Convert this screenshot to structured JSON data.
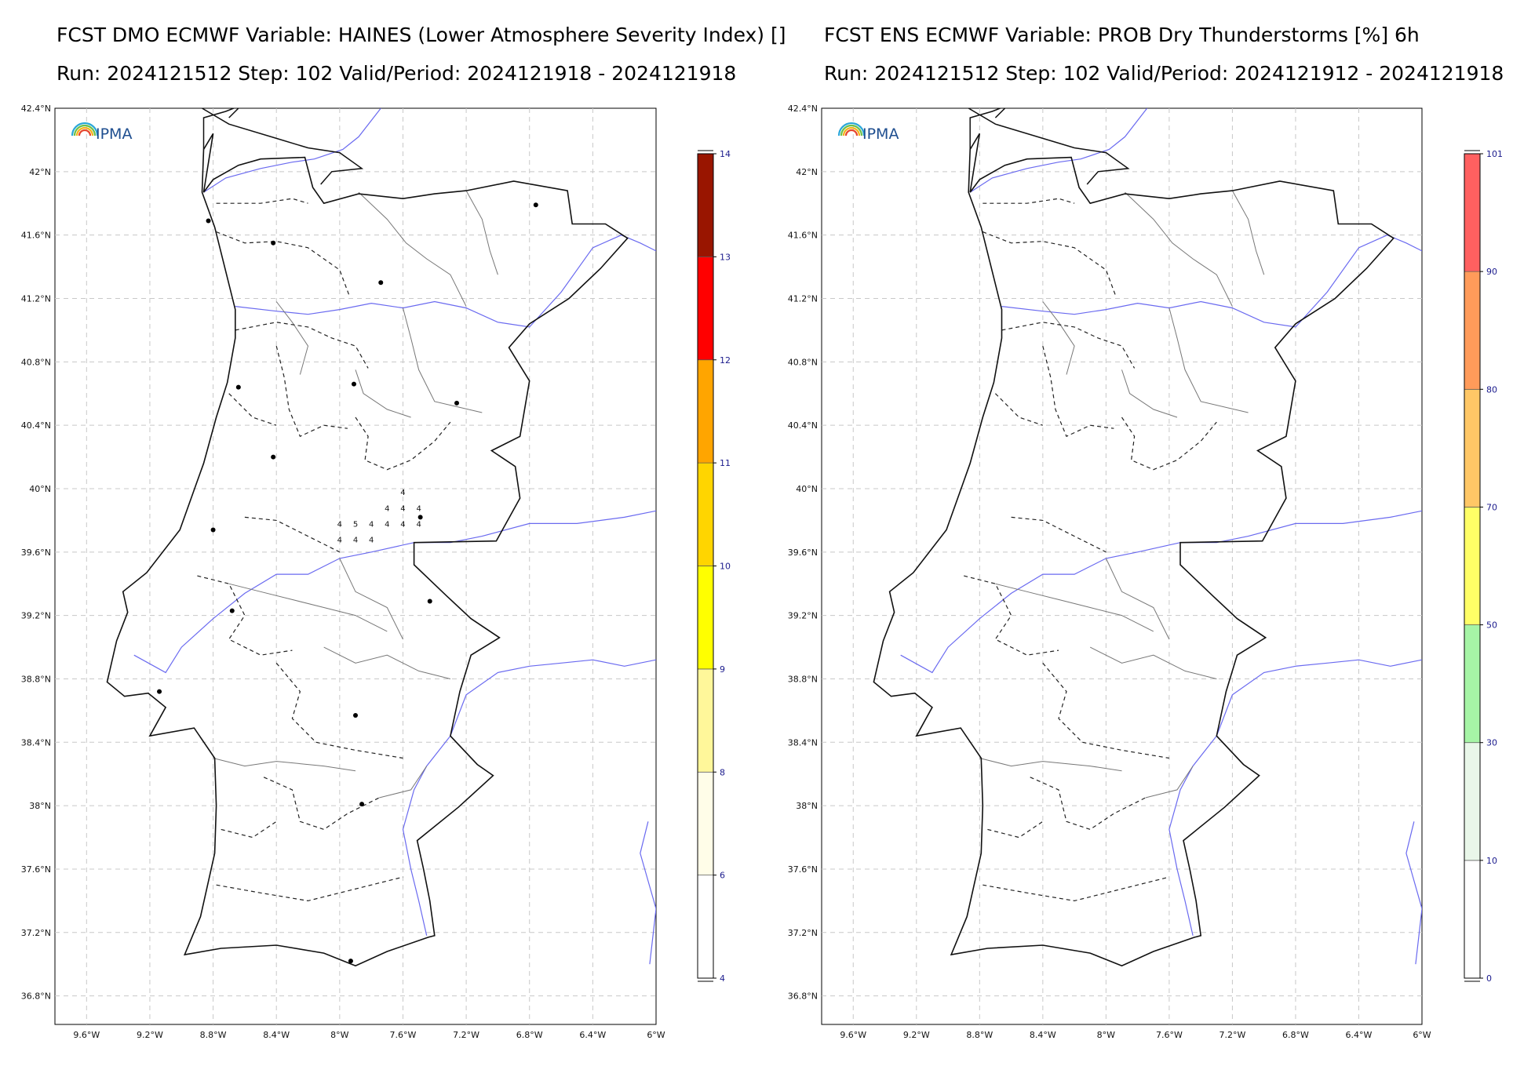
{
  "panels": [
    {
      "title_line1": "FCST DMO ECMWF Variable: HAINES (Lower Atmosphere Severity Index) []",
      "title_line2": "Run: 2024121512 Step: 102 Valid/Period: 2024121918 - 2024121918",
      "logo": "IPMA",
      "lat_labels": [
        "42.4°N",
        "42°N",
        "41.6°N",
        "41.2°N",
        "40.8°N",
        "40.4°N",
        "40°N",
        "39.6°N",
        "39.2°N",
        "38.8°N",
        "38.4°N",
        "38°N",
        "37.6°N",
        "37.2°N",
        "36.8°N"
      ],
      "lon_labels": [
        "9.6°W",
        "9.2°W",
        "8.8°W",
        "8.4°W",
        "8°W",
        "7.6°W",
        "7.2°W",
        "6.8°W",
        "6.4°W",
        "6°W"
      ],
      "colorbar": {
        "ticks": [
          "4",
          "6",
          "8",
          "9",
          "10",
          "11",
          "12",
          "13",
          "14"
        ],
        "colors": [
          "#ffffff",
          "#fffde8",
          "#fff79a",
          "#ffff00",
          "#ffd500",
          "#ffa500",
          "#ff0000",
          "#991500"
        ]
      },
      "grid_values": [
        {
          "lat": 39.96,
          "lon": -7.6,
          "v": "4"
        },
        {
          "lat": 39.86,
          "lon": -7.7,
          "v": "4"
        },
        {
          "lat": 39.86,
          "lon": -7.6,
          "v": "4"
        },
        {
          "lat": 39.86,
          "lon": -7.5,
          "v": "4"
        },
        {
          "lat": 39.76,
          "lon": -8.0,
          "v": "4"
        },
        {
          "lat": 39.76,
          "lon": -7.9,
          "v": "5"
        },
        {
          "lat": 39.76,
          "lon": -7.8,
          "v": "4"
        },
        {
          "lat": 39.76,
          "lon": -7.7,
          "v": "4"
        },
        {
          "lat": 39.76,
          "lon": -7.6,
          "v": "4"
        },
        {
          "lat": 39.76,
          "lon": -7.5,
          "v": "4"
        },
        {
          "lat": 39.66,
          "lon": -8.0,
          "v": "4"
        },
        {
          "lat": 39.66,
          "lon": -7.9,
          "v": "4"
        },
        {
          "lat": 39.66,
          "lon": -7.8,
          "v": "4"
        }
      ]
    },
    {
      "title_line1": "FCST ENS ECMWF Variable: PROB Dry Thunderstorms [%] 6h",
      "title_line2": "Run: 2024121512 Step: 102 Valid/Period: 2024121912 - 2024121918",
      "logo": "IPMA",
      "lat_labels": [
        "42.4°N",
        "42°N",
        "41.6°N",
        "41.2°N",
        "40.8°N",
        "40.4°N",
        "40°N",
        "39.6°N",
        "39.2°N",
        "38.8°N",
        "38.4°N",
        "38°N",
        "37.6°N",
        "37.2°N",
        "36.8°N"
      ],
      "lon_labels": [
        "9.6°W",
        "9.2°W",
        "8.8°W",
        "8.4°W",
        "8°W",
        "7.6°W",
        "7.2°W",
        "6.8°W",
        "6.4°W",
        "6°W"
      ],
      "colorbar": {
        "ticks": [
          "0",
          "10",
          "30",
          "50",
          "70",
          "80",
          "90",
          "101"
        ],
        "colors": [
          "#ffffff",
          "#e9f7e9",
          "#a6f5a6",
          "#ffff66",
          "#ffc766",
          "#ff9b5a",
          "#ff6060"
        ]
      },
      "grid_values": []
    }
  ],
  "map": {
    "lat_min": 36.62,
    "lat_max": 42.4,
    "lon_min": -9.8,
    "lon_max": -6.0,
    "lat_ticks": [
      42.4,
      42.0,
      41.6,
      41.2,
      40.8,
      40.4,
      40.0,
      39.6,
      39.2,
      38.8,
      38.4,
      38.0,
      37.6,
      37.2,
      36.8
    ],
    "lon_ticks": [
      -9.6,
      -9.2,
      -8.8,
      -8.4,
      -8.0,
      -7.6,
      -7.2,
      -6.8,
      -6.4,
      -6.0
    ],
    "cities": [
      [
        41.79,
        -6.76
      ],
      [
        41.69,
        -8.83
      ],
      [
        41.55,
        -8.42
      ],
      [
        41.3,
        -7.74
      ],
      [
        40.64,
        -8.64
      ],
      [
        40.66,
        -7.91
      ],
      [
        40.54,
        -7.26
      ],
      [
        40.2,
        -8.42
      ],
      [
        39.82,
        -7.49
      ],
      [
        39.74,
        -8.8
      ],
      [
        39.29,
        -7.43
      ],
      [
        39.23,
        -8.68
      ],
      [
        38.72,
        -9.14
      ],
      [
        38.57,
        -7.9
      ],
      [
        38.01,
        -7.86
      ],
      [
        37.02,
        -7.93
      ]
    ]
  }
}
